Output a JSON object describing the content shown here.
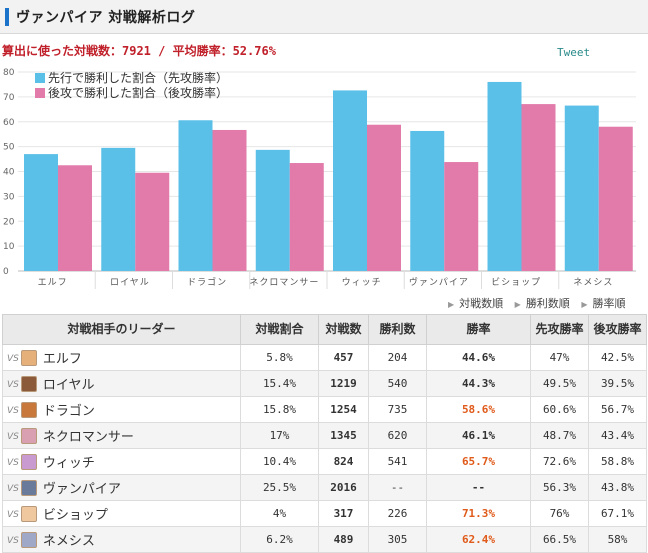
{
  "header": {
    "title": "ヴァンパイア 対戦解析ログ"
  },
  "summary": "算出に使った対戦数：7921 / 平均勝率：52.76%",
  "tweet_label": "Tweet",
  "colors": {
    "first": "#5bc0e8",
    "second": "#e27aaa",
    "accent": "#c0202a",
    "high_rate": "#e05a1a"
  },
  "chart_data": {
    "type": "bar",
    "categories": [
      "エルフ",
      "ロイヤル",
      "ドラゴン",
      "ネクロマンサー",
      "ウィッチ",
      "ヴァンパイア",
      "ビショップ",
      "ネメシス"
    ],
    "series": [
      {
        "name": "先行で勝利した割合（先攻勝率）",
        "values": [
          47,
          49.5,
          60.6,
          48.7,
          72.6,
          56.3,
          76,
          66.5
        ]
      },
      {
        "name": "後攻で勝利した割合（後攻勝率）",
        "values": [
          42.5,
          39.5,
          56.7,
          43.4,
          58.8,
          43.8,
          67.1,
          58
        ]
      }
    ],
    "ylim": [
      0,
      80
    ],
    "yticks": [
      0,
      10,
      20,
      30,
      40,
      50,
      60,
      70,
      80
    ],
    "legend_position": "top-left",
    "grid": true
  },
  "sort_links": [
    "対戦数順",
    "勝利数順",
    "勝率順"
  ],
  "table": {
    "headers": [
      "対戦相手のリーダー",
      "対戦割合",
      "対戦数",
      "勝利数",
      "勝率",
      "先攻勝率",
      "後攻勝率"
    ],
    "vs_label": "VS",
    "rows": [
      {
        "leader": "エルフ",
        "share": "5.8%",
        "games": "457",
        "wins": "204",
        "rate": "44.6%",
        "first": "47%",
        "second": "42.5%",
        "high": false,
        "avatar": "#e6b07a"
      },
      {
        "leader": "ロイヤル",
        "share": "15.4%",
        "games": "1219",
        "wins": "540",
        "rate": "44.3%",
        "first": "49.5%",
        "second": "39.5%",
        "high": false,
        "avatar": "#8a5a3a"
      },
      {
        "leader": "ドラゴン",
        "share": "15.8%",
        "games": "1254",
        "wins": "735",
        "rate": "58.6%",
        "first": "60.6%",
        "second": "56.7%",
        "high": true,
        "avatar": "#c8783a"
      },
      {
        "leader": "ネクロマンサー",
        "share": "17%",
        "games": "1345",
        "wins": "620",
        "rate": "46.1%",
        "first": "48.7%",
        "second": "43.4%",
        "high": false,
        "avatar": "#d8a0b0"
      },
      {
        "leader": "ウィッチ",
        "share": "10.4%",
        "games": "824",
        "wins": "541",
        "rate": "65.7%",
        "first": "72.6%",
        "second": "58.8%",
        "high": true,
        "avatar": "#c89ad0"
      },
      {
        "leader": "ヴァンパイア",
        "share": "25.5%",
        "games": "2016",
        "wins": "--",
        "rate": "--",
        "first": "56.3%",
        "second": "43.8%",
        "high": false,
        "avatar": "#6a7a9a"
      },
      {
        "leader": "ビショップ",
        "share": "4%",
        "games": "317",
        "wins": "226",
        "rate": "71.3%",
        "first": "76%",
        "second": "67.1%",
        "high": true,
        "avatar": "#f0c8a0"
      },
      {
        "leader": "ネメシス",
        "share": "6.2%",
        "games": "489",
        "wins": "305",
        "rate": "62.4%",
        "first": "66.5%",
        "second": "58%",
        "high": true,
        "avatar": "#a0a8c8"
      }
    ]
  }
}
